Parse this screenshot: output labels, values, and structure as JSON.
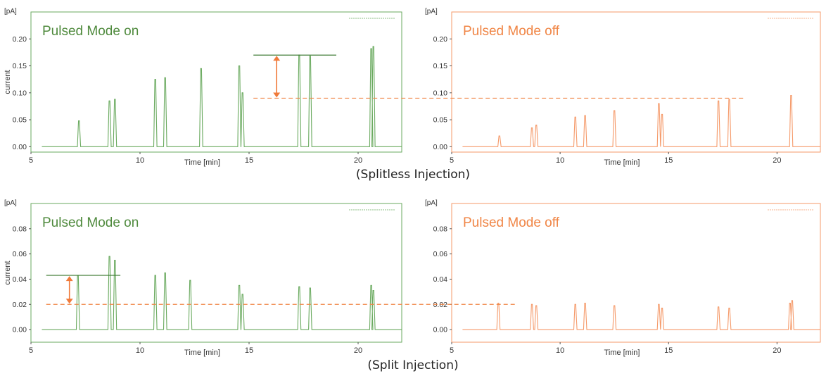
{
  "captions": {
    "top": "(Splitless Injection)",
    "bottom": "(Split Injection)"
  },
  "colors": {
    "on": "#6aaa5f",
    "on_title": "#4f8a3d",
    "off": "#f59a6a",
    "off_title": "#f08545",
    "arrow": "#f07a3a",
    "dash": "#f08545",
    "axis_text": "#333333"
  },
  "chart_data": [
    {
      "type": "line",
      "title": "Pulsed Mode on",
      "unit": "[pA]",
      "ylabel": "current",
      "xlabel": "Time [min]",
      "xlim": [
        5,
        22
      ],
      "ylim": [
        -0.01,
        0.25
      ],
      "xticks": [
        5,
        10,
        15,
        20
      ],
      "yticks": [
        0.0,
        0.05,
        0.1,
        0.15,
        0.2
      ],
      "ytick_labels": [
        "0.00",
        "0.05",
        "0.10",
        "0.15",
        "0.20"
      ],
      "series": [
        {
          "peaks": [
            {
              "x": 7.2,
              "y": 0.048
            },
            {
              "x": 8.6,
              "y": 0.085
            },
            {
              "x": 8.85,
              "y": 0.088
            },
            {
              "x": 10.7,
              "y": 0.125
            },
            {
              "x": 11.15,
              "y": 0.128
            },
            {
              "x": 12.8,
              "y": 0.145
            },
            {
              "x": 14.55,
              "y": 0.15
            },
            {
              "x": 14.7,
              "y": 0.1
            },
            {
              "x": 17.3,
              "y": 0.17
            },
            {
              "x": 17.8,
              "y": 0.168
            },
            {
              "x": 20.6,
              "y": 0.182
            },
            {
              "x": 20.7,
              "y": 0.186
            }
          ]
        }
      ]
    },
    {
      "type": "line",
      "title": "Pulsed Mode off",
      "unit": "[pA]",
      "xlabel": "Time [min]",
      "xlim": [
        5,
        22
      ],
      "ylim": [
        -0.01,
        0.25
      ],
      "xticks": [
        5,
        10,
        15,
        20
      ],
      "yticks": [
        0.0,
        0.05,
        0.1,
        0.15,
        0.2
      ],
      "ytick_labels": [
        "0.00",
        "0.05",
        "0.10",
        "0.15",
        "0.20"
      ],
      "series": [
        {
          "peaks": [
            {
              "x": 7.2,
              "y": 0.02
            },
            {
              "x": 8.7,
              "y": 0.035
            },
            {
              "x": 8.9,
              "y": 0.04
            },
            {
              "x": 10.7,
              "y": 0.055
            },
            {
              "x": 11.15,
              "y": 0.058
            },
            {
              "x": 12.5,
              "y": 0.067
            },
            {
              "x": 14.55,
              "y": 0.08
            },
            {
              "x": 14.7,
              "y": 0.06
            },
            {
              "x": 17.3,
              "y": 0.085
            },
            {
              "x": 17.8,
              "y": 0.088
            },
            {
              "x": 20.65,
              "y": 0.095
            }
          ]
        }
      ]
    },
    {
      "type": "line",
      "title": "Pulsed Mode on",
      "unit": "[pA]",
      "ylabel": "current",
      "xlabel": "Time [min]",
      "xlim": [
        5,
        22
      ],
      "ylim": [
        -0.01,
        0.1
      ],
      "xticks": [
        5,
        10,
        15,
        20
      ],
      "yticks": [
        0.0,
        0.02,
        0.04,
        0.06,
        0.08
      ],
      "ytick_labels": [
        "0.00",
        "0.02",
        "0.04",
        "0.06",
        "0.08"
      ],
      "series": [
        {
          "peaks": [
            {
              "x": 7.15,
              "y": 0.043
            },
            {
              "x": 8.6,
              "y": 0.058
            },
            {
              "x": 8.85,
              "y": 0.055
            },
            {
              "x": 10.7,
              "y": 0.043
            },
            {
              "x": 11.15,
              "y": 0.045
            },
            {
              "x": 12.3,
              "y": 0.039
            },
            {
              "x": 14.55,
              "y": 0.035
            },
            {
              "x": 14.7,
              "y": 0.028
            },
            {
              "x": 17.3,
              "y": 0.034
            },
            {
              "x": 17.8,
              "y": 0.033
            },
            {
              "x": 20.6,
              "y": 0.035
            },
            {
              "x": 20.7,
              "y": 0.031
            }
          ]
        }
      ]
    },
    {
      "type": "line",
      "title": "Pulsed Mode off",
      "unit": "[pA]",
      "xlabel": "Time [min]",
      "xlim": [
        5,
        22
      ],
      "ylim": [
        -0.01,
        0.1
      ],
      "xticks": [
        5,
        10,
        15,
        20
      ],
      "yticks": [
        0.0,
        0.02,
        0.04,
        0.06,
        0.08
      ],
      "ytick_labels": [
        "0.00",
        "0.02",
        "0.04",
        "0.06",
        "0.08"
      ],
      "series": [
        {
          "peaks": [
            {
              "x": 7.15,
              "y": 0.021
            },
            {
              "x": 8.7,
              "y": 0.02
            },
            {
              "x": 8.9,
              "y": 0.019
            },
            {
              "x": 10.7,
              "y": 0.02
            },
            {
              "x": 11.15,
              "y": 0.021
            },
            {
              "x": 12.5,
              "y": 0.019
            },
            {
              "x": 14.55,
              "y": 0.02
            },
            {
              "x": 14.7,
              "y": 0.017
            },
            {
              "x": 17.3,
              "y": 0.018
            },
            {
              "x": 17.8,
              "y": 0.017
            },
            {
              "x": 20.6,
              "y": 0.021
            },
            {
              "x": 20.7,
              "y": 0.023
            }
          ]
        }
      ]
    }
  ],
  "annotations": [
    {
      "chart": 0,
      "high": 0.17,
      "low": 0.09,
      "x_range": [
        15.2,
        19.0
      ],
      "dash_end_chart": 1,
      "dash_end_x": 18.5
    },
    {
      "chart": 2,
      "high": 0.043,
      "low": 0.02,
      "x_range": [
        5.7,
        9.1
      ],
      "dash_end_chart": 3,
      "dash_end_x": 8.0
    }
  ]
}
